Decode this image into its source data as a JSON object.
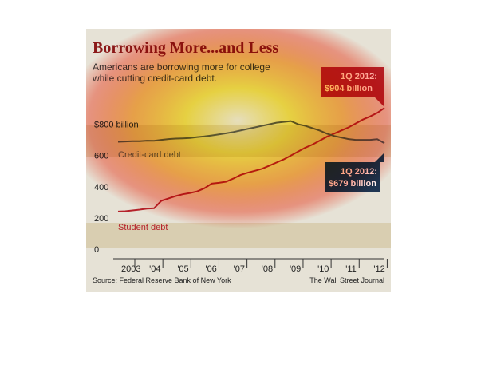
{
  "title": "Borrowing More...and Less",
  "subtitle_lines": [
    "Americans are borrowing more for college",
    "while cutting credit-card debt."
  ],
  "source": "Source: Federal Reserve Bank of New York",
  "publisher": "The Wall Street Journal",
  "colors": {
    "student": "#b5222a",
    "credit": "#5a5a5a",
    "callout_student": "#b5222a",
    "callout_credit": "#1f3552",
    "band": "#d9ceb1",
    "background": "#e6e2d6"
  },
  "callouts": {
    "student": {
      "line1": "1Q 2012:",
      "line2": "$904 billion"
    },
    "credit": {
      "line1": "1Q 2012:",
      "line2": "$679 billion"
    }
  },
  "chart_data": {
    "type": "line",
    "title": "Borrowing More...and Less",
    "x_tick_labels": [
      "2003",
      "'04",
      "'05",
      "'06",
      "'07",
      "'08",
      "'09",
      "'10",
      "'11",
      "'12"
    ],
    "y_ticks": [
      {
        "value": 0,
        "label": "0"
      },
      {
        "value": 200,
        "label": "200"
      },
      {
        "value": 400,
        "label": "400"
      },
      {
        "value": 600,
        "label": "600"
      },
      {
        "value": 800,
        "label": "$800 billion"
      }
    ],
    "ylim": [
      0,
      900
    ],
    "xlim": [
      2003.0,
      2012.25
    ],
    "series": [
      {
        "name": "Student debt",
        "key": "student",
        "x": [
          2003.0,
          2003.25,
          2003.5,
          2003.75,
          2004.0,
          2004.25,
          2004.5,
          2004.75,
          2005.0,
          2005.25,
          2005.5,
          2005.75,
          2006.0,
          2006.25,
          2006.5,
          2006.75,
          2007.0,
          2007.25,
          2007.5,
          2007.75,
          2008.0,
          2008.25,
          2008.5,
          2008.75,
          2009.0,
          2009.25,
          2009.5,
          2009.75,
          2010.0,
          2010.25,
          2010.5,
          2010.75,
          2011.0,
          2011.25,
          2011.5,
          2011.75,
          2012.0,
          2012.25
        ],
        "values": [
          241,
          243,
          248,
          253,
          260,
          262,
          310,
          325,
          340,
          352,
          360,
          370,
          390,
          420,
          425,
          432,
          452,
          475,
          490,
          502,
          515,
          535,
          555,
          575,
          600,
          625,
          650,
          670,
          695,
          720,
          740,
          760,
          780,
          805,
          830,
          850,
          873,
          904
        ]
      },
      {
        "name": "Credit-card debt",
        "key": "credit",
        "x": [
          2003.0,
          2003.25,
          2003.5,
          2003.75,
          2004.0,
          2004.25,
          2004.5,
          2004.75,
          2005.0,
          2005.25,
          2005.5,
          2005.75,
          2006.0,
          2006.25,
          2006.5,
          2006.75,
          2007.0,
          2007.25,
          2007.5,
          2007.75,
          2008.0,
          2008.25,
          2008.5,
          2008.75,
          2009.0,
          2009.25,
          2009.5,
          2009.75,
          2010.0,
          2010.25,
          2010.5,
          2010.75,
          2011.0,
          2011.25,
          2011.5,
          2011.75,
          2012.0,
          2012.25
        ],
        "values": [
          688,
          690,
          692,
          692,
          695,
          694,
          700,
          705,
          708,
          710,
          712,
          718,
          722,
          728,
          735,
          742,
          750,
          760,
          770,
          780,
          790,
          800,
          810,
          815,
          820,
          800,
          790,
          775,
          760,
          740,
          725,
          715,
          705,
          700,
          700,
          700,
          704,
          679
        ]
      }
    ]
  }
}
